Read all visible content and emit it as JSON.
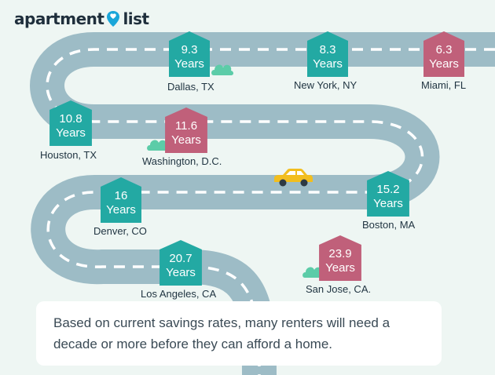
{
  "brand": {
    "name_left": "apartment",
    "name_right": "list",
    "pin_color": "#1aa6d9"
  },
  "colors": {
    "background": "#eef6f3",
    "road": "#9dbcc6",
    "road_dash": "#ffffff",
    "teal_house": "#23a9a3",
    "rose_house": "#c0607a",
    "cloud": "#5ccca8",
    "car": "#f2be1e"
  },
  "markers": [
    {
      "value": "9.3",
      "unit": "Years",
      "city": "Dallas, TX",
      "color": "teal"
    },
    {
      "value": "8.3",
      "unit": "Years",
      "city": "New York, NY",
      "color": "teal"
    },
    {
      "value": "6.3",
      "unit": "Years",
      "city": "Miami, FL",
      "color": "rose"
    },
    {
      "value": "10.8",
      "unit": "Years",
      "city": "Houston, TX",
      "color": "teal"
    },
    {
      "value": "11.6",
      "unit": "Years",
      "city": "Washington, D.C.",
      "color": "rose"
    },
    {
      "value": "16",
      "unit": "Years",
      "city": "Denver, CO",
      "color": "teal"
    },
    {
      "value": "15.2",
      "unit": "Years",
      "city": "Boston, MA",
      "color": "teal"
    },
    {
      "value": "20.7",
      "unit": "Years",
      "city": "Los Angeles, CA",
      "color": "teal"
    },
    {
      "value": "23.9",
      "unit": "Years",
      "city": "San Jose, CA.",
      "color": "rose"
    }
  ],
  "note": {
    "text": "Based on current savings rates, many renters will need a decade or more before they can afford a home."
  }
}
